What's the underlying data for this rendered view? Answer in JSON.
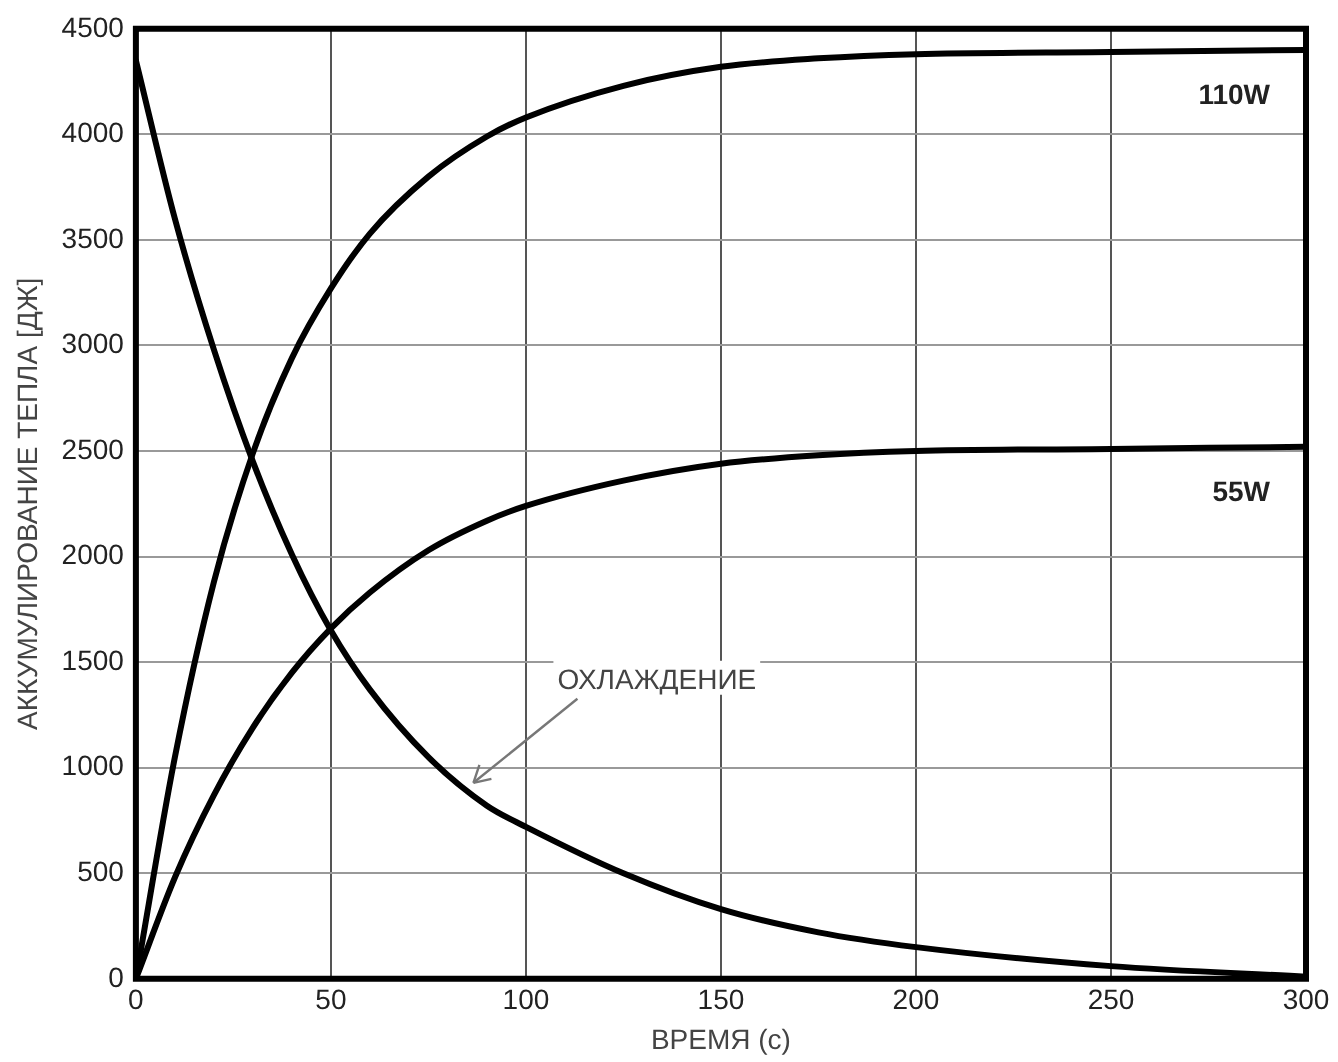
{
  "chart_data": {
    "type": "line",
    "xlabel": "ВРЕМЯ (с)",
    "ylabel": "АККУМУЛИРОВАНИЕ ТЕПЛА [ДЖ]",
    "x": [
      0,
      10,
      20,
      30,
      40,
      50,
      60,
      75,
      90,
      100,
      125,
      150,
      175,
      200,
      250,
      300
    ],
    "series": [
      {
        "name": "110W",
        "color": "#000000",
        "values": [
          0,
          1050,
          1880,
          2490,
          2940,
          3270,
          3530,
          3800,
          3990,
          4080,
          4230,
          4320,
          4360,
          4380,
          4390,
          4400
        ]
      },
      {
        "name": "55W",
        "color": "#000000",
        "values": [
          0,
          480,
          870,
          1190,
          1450,
          1660,
          1830,
          2030,
          2170,
          2240,
          2360,
          2440,
          2480,
          2500,
          2510,
          2520
        ]
      },
      {
        "color": "#000000",
        "values": [
          4350,
          3600,
          2980,
          2450,
          2010,
          1650,
          1370,
          1050,
          820,
          720,
          500,
          330,
          220,
          150,
          60,
          10
        ]
      }
    ],
    "annotations": [
      {
        "text": "ОХЛАЖДЕНИЕ",
        "x": 85,
        "y": 900
      }
    ],
    "xlim": [
      0,
      300
    ],
    "xticks": [
      0,
      50,
      100,
      150,
      200,
      250,
      300
    ],
    "ylim": [
      0,
      4500
    ],
    "yticks": [
      0,
      500,
      1000,
      1500,
      2000,
      2500,
      3000,
      3500,
      4000,
      4500
    ],
    "grid": true,
    "legend": false,
    "marker": "none",
    "line_style": "solid"
  }
}
